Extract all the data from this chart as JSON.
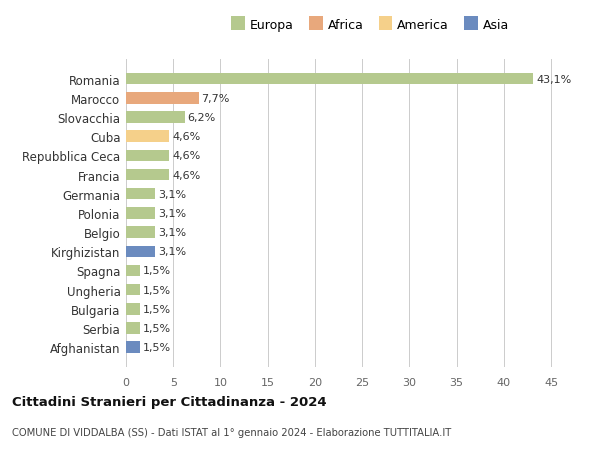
{
  "countries": [
    "Romania",
    "Marocco",
    "Slovacchia",
    "Cuba",
    "Repubblica Ceca",
    "Francia",
    "Germania",
    "Polonia",
    "Belgio",
    "Kirghizistan",
    "Spagna",
    "Ungheria",
    "Bulgaria",
    "Serbia",
    "Afghanistan"
  ],
  "values": [
    43.1,
    7.7,
    6.2,
    4.6,
    4.6,
    4.6,
    3.1,
    3.1,
    3.1,
    3.1,
    1.5,
    1.5,
    1.5,
    1.5,
    1.5
  ],
  "labels": [
    "43,1%",
    "7,7%",
    "6,2%",
    "4,6%",
    "4,6%",
    "4,6%",
    "3,1%",
    "3,1%",
    "3,1%",
    "3,1%",
    "1,5%",
    "1,5%",
    "1,5%",
    "1,5%",
    "1,5%"
  ],
  "colors": [
    "#b5c98e",
    "#e8a87c",
    "#b5c98e",
    "#f5d08a",
    "#b5c98e",
    "#b5c98e",
    "#b5c98e",
    "#b5c98e",
    "#b5c98e",
    "#6b8bbf",
    "#b5c98e",
    "#b5c98e",
    "#b5c98e",
    "#b5c98e",
    "#6b8bbf"
  ],
  "continent_labels": [
    "Europa",
    "Africa",
    "America",
    "Asia"
  ],
  "continent_colors": [
    "#b5c98e",
    "#e8a87c",
    "#f5d08a",
    "#6b8bbf"
  ],
  "xlim": [
    0,
    47
  ],
  "xticks": [
    0,
    5,
    10,
    15,
    20,
    25,
    30,
    35,
    40,
    45
  ],
  "title": "Cittadini Stranieri per Cittadinanza - 2024",
  "subtitle": "COMUNE DI VIDDALBA (SS) - Dati ISTAT al 1° gennaio 2024 - Elaborazione TUTTITALIA.IT",
  "bg_color": "#ffffff",
  "grid_color": "#cccccc",
  "bar_height": 0.6
}
